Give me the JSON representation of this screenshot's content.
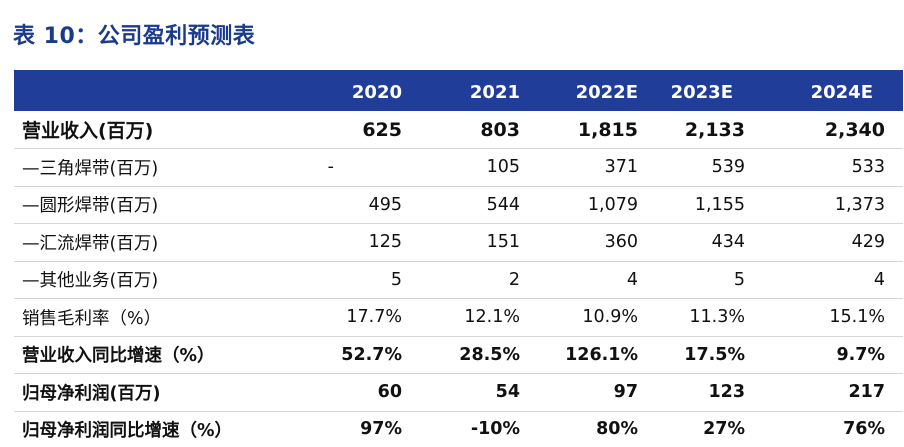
{
  "title": "表 10：公司盈利预测表",
  "table": {
    "columns": [
      "",
      "2020",
      "2021",
      "2022E",
      "2023E",
      "2024E"
    ],
    "rows": [
      {
        "label": "营业收入(百万)",
        "values": [
          "625",
          "803",
          "1,815",
          "2,133",
          "2,340"
        ],
        "style": "bold big"
      },
      {
        "label": "—三角焊带(百万)",
        "values": [
          "-",
          "105",
          "371",
          "539",
          "533"
        ],
        "style": ""
      },
      {
        "label": "—圆形焊带(百万)",
        "values": [
          "495",
          "544",
          "1,079",
          "1,155",
          "1,373"
        ],
        "style": ""
      },
      {
        "label": "—汇流焊带(百万)",
        "values": [
          "125",
          "151",
          "360",
          "434",
          "429"
        ],
        "style": ""
      },
      {
        "label": "—其他业务(百万)",
        "values": [
          "5",
          "2",
          "4",
          "5",
          "4"
        ],
        "style": ""
      },
      {
        "label": "销售毛利率（%）",
        "values": [
          "17.7%",
          "12.1%",
          "10.9%",
          "11.3%",
          "15.1%"
        ],
        "style": ""
      },
      {
        "label": "营业收入同比增速（%）",
        "values": [
          "52.7%",
          "28.5%",
          "126.1%",
          "17.5%",
          "9.7%"
        ],
        "style": "bold"
      },
      {
        "label": "归母净利润(百万)",
        "values": [
          "60",
          "54",
          "97",
          "123",
          "217"
        ],
        "style": "bold"
      },
      {
        "label": "归母净利润同比增速（%）",
        "values": [
          "97%",
          "-10%",
          "80%",
          "27%",
          "76%"
        ],
        "style": "bold"
      }
    ]
  }
}
